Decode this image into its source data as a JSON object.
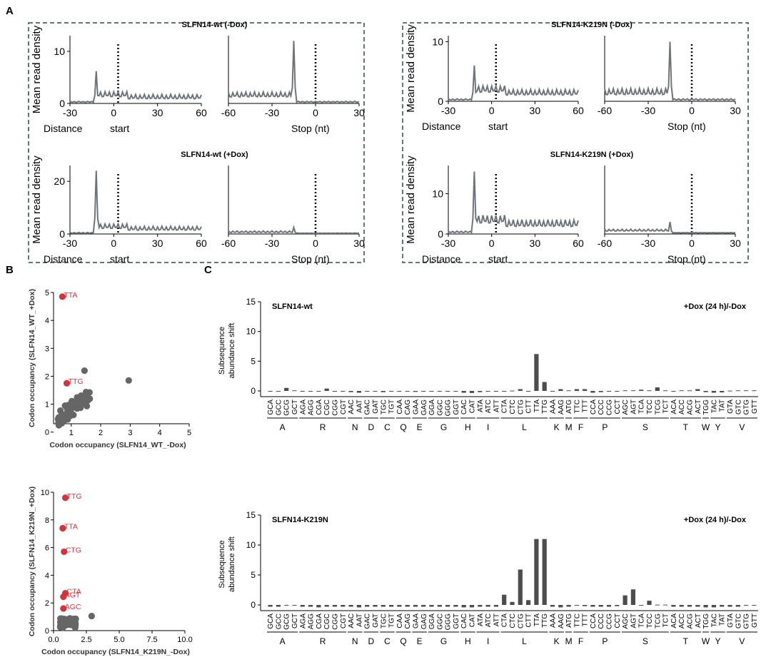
{
  "panels": {
    "A": "A",
    "B": "B",
    "C": "C"
  },
  "colors": {
    "line": "#6e757a",
    "bar": "#4d4d4d",
    "scatter": "#666666",
    "highlight": "#d6323a",
    "box": "#2f4f3f"
  },
  "panelA": {
    "ylabel": "Mean read density",
    "start_label_left": "Distance",
    "start_label_right": "start",
    "stop_label": "Stop (nt)",
    "groups": [
      {
        "rows": [
          {
            "title": "SLFN14-wt (-Dox)",
            "yticks": [
              0,
              10
            ],
            "ymax": 13,
            "start": {
              "peak": [
                -12,
                6.2
              ],
              "base": 1.2,
              "amp": 0.9,
              "tail": 0.3
            },
            "stop": {
              "peak": [
                -15,
                12
              ],
              "base": 1.6,
              "amp": 1.0,
              "tail": 0.3
            }
          },
          {
            "title": "SLFN14-wt (+Dox)",
            "yticks": [
              0,
              20
            ],
            "ymax": 26,
            "start": {
              "peak": [
                -12,
                24
              ],
              "base": 2.0,
              "amp": 1.6,
              "tail": 0.4
            },
            "stop": {
              "peak": [
                -15,
                2.5
              ],
              "base": 0.8,
              "amp": 0.6,
              "tail": 0.3
            }
          }
        ]
      },
      {
        "rows": [
          {
            "title": "SLFN14-K219N (-Dox)",
            "yticks": [
              0,
              10
            ],
            "ymax": 11,
            "start": {
              "peak": [
                -12,
                6.0
              ],
              "base": 1.4,
              "amp": 1.0,
              "tail": 0.3
            },
            "stop": {
              "peak": [
                -15,
                10
              ],
              "base": 1.5,
              "amp": 1.1,
              "tail": 0.3
            }
          },
          {
            "title": "SLFN14-K219N (+Dox)",
            "yticks": [
              0,
              10
            ],
            "ymax": 17,
            "start": {
              "peak": [
                -12,
                15.5
              ],
              "base": 2.5,
              "amp": 1.8,
              "tail": 0.5
            },
            "stop": {
              "peak": [
                -15,
                3.0
              ],
              "base": 0.9,
              "amp": 0.5,
              "tail": 0.3
            }
          }
        ]
      }
    ],
    "start_xticks": [
      -30,
      0,
      30,
      60
    ],
    "stop_xticks": [
      -60,
      -30,
      0,
      30
    ]
  },
  "panelB": {
    "plots": [
      {
        "xlabel": "Codon occupancy (SLFN14_WT_-Dox)",
        "ylabel": "Codon occupancy (SLFN14_WT_+Dox)",
        "ticks": [
          1,
          2,
          3,
          4,
          5
        ],
        "yticks": [
          0,
          1,
          2,
          3,
          4,
          5
        ],
        "max": 5,
        "highlights": [
          {
            "label": "TTA",
            "x": 0.7,
            "y": 4.85
          },
          {
            "label": "TTG",
            "x": 0.85,
            "y": 1.75
          }
        ]
      },
      {
        "xlabel": "Codon occupancy (SLFN14_K219N_-Dox)",
        "ylabel": "Codon occupancy (SLFN14_K219N_+Dox)",
        "ticks": [
          0.0,
          2.5,
          5.0,
          7.5,
          10.0
        ],
        "yticks": [
          0,
          2,
          4,
          6,
          8,
          10
        ],
        "max": 10,
        "highlights": [
          {
            "label": "TTG",
            "x": 0.9,
            "y": 9.6
          },
          {
            "label": "TTA",
            "x": 0.7,
            "y": 7.4
          },
          {
            "label": "CTG",
            "x": 0.8,
            "y": 5.7
          },
          {
            "label": "CTA",
            "x": 0.9,
            "y": 2.7
          },
          {
            "label": "AGT",
            "x": 0.75,
            "y": 2.45
          },
          {
            "label": "AGC",
            "x": 0.75,
            "y": 1.6
          }
        ]
      }
    ]
  },
  "panelC": {
    "ylabel_line1": "Subsequence",
    "ylabel_line2": "abundance shift",
    "yticks": [
      0,
      5,
      10,
      15
    ],
    "annotation": "+Dox (24 h)/-Dox",
    "codons": [
      "GCA",
      "GCC",
      "GCG",
      "GCT",
      "AGA",
      "AGG",
      "CGA",
      "CGC",
      "CGG",
      "CGT",
      "AAC",
      "AAT",
      "GAC",
      "GAT",
      "TGC",
      "TGT",
      "CAA",
      "CAG",
      "GAA",
      "GAG",
      "GGA",
      "GGC",
      "GGG",
      "GGT",
      "CAC",
      "CAT",
      "ATA",
      "ATC",
      "ATT",
      "CTA",
      "CTC",
      "CTG",
      "CTT",
      "TTA",
      "TTG",
      "AAA",
      "AAG",
      "ATG",
      "TTC",
      "TTT",
      "CCA",
      "CCC",
      "CCG",
      "CCT",
      "AGC",
      "AGT",
      "TCA",
      "TCC",
      "TCG",
      "TCT",
      "ACA",
      "ACC",
      "ACG",
      "ACT",
      "TGG",
      "TAC",
      "TAT",
      "GTA",
      "GTC",
      "GTG",
      "GTT"
    ],
    "amino_groups": [
      {
        "aa": "A",
        "start": 0,
        "end": 3
      },
      {
        "aa": "R",
        "start": 4,
        "end": 9
      },
      {
        "aa": "N",
        "start": 10,
        "end": 11
      },
      {
        "aa": "D",
        "start": 12,
        "end": 13
      },
      {
        "aa": "C",
        "start": 14,
        "end": 15
      },
      {
        "aa": "Q",
        "start": 16,
        "end": 17
      },
      {
        "aa": "E",
        "start": 18,
        "end": 19
      },
      {
        "aa": "G",
        "start": 20,
        "end": 23
      },
      {
        "aa": "H",
        "start": 24,
        "end": 25
      },
      {
        "aa": "I",
        "start": 26,
        "end": 28
      },
      {
        "aa": "L",
        "start": 29,
        "end": 34
      },
      {
        "aa": "K",
        "start": 35,
        "end": 36
      },
      {
        "aa": "M",
        "start": 37,
        "end": 37
      },
      {
        "aa": "F",
        "start": 38,
        "end": 39
      },
      {
        "aa": "P",
        "start": 40,
        "end": 43
      },
      {
        "aa": "S",
        "start": 44,
        "end": 49
      },
      {
        "aa": "T",
        "start": 50,
        "end": 53
      },
      {
        "aa": "W",
        "start": 54,
        "end": 54
      },
      {
        "aa": "Y",
        "start": 55,
        "end": 56
      },
      {
        "aa": "V",
        "start": 57,
        "end": 60
      }
    ],
    "charts": [
      {
        "title": "SLFN14-wt",
        "values": [
          -0.1,
          -0.1,
          0.5,
          0.1,
          -0.05,
          -0.05,
          -0.1,
          0.4,
          -0.05,
          -0.05,
          -0.2,
          -0.3,
          -0.05,
          -0.05,
          -0.2,
          -0.1,
          -0.1,
          -0.1,
          -0.15,
          -0.1,
          -0.05,
          -0.05,
          -0.05,
          -0.05,
          -0.3,
          -0.35,
          -0.2,
          -0.05,
          -0.05,
          -0.05,
          0.05,
          0.3,
          -0.05,
          6.2,
          1.5,
          -0.05,
          0.3,
          0.1,
          0.3,
          0.3,
          -0.3,
          -0.2,
          -0.05,
          -0.05,
          0.1,
          0.1,
          0.2,
          0.1,
          0.6,
          0.1,
          -0.05,
          0.1,
          0.1,
          0.3,
          -0.2,
          -0.3,
          -0.25,
          0.05,
          0.1,
          0.1,
          0.1
        ]
      },
      {
        "title": "SLFN14-K219N",
        "values": [
          -0.3,
          -0.3,
          -0.05,
          -0.1,
          -0.3,
          -0.3,
          -0.4,
          -0.3,
          -0.3,
          -0.3,
          -0.3,
          -0.4,
          -0.3,
          -0.3,
          -0.3,
          -0.3,
          -0.3,
          -0.3,
          -0.3,
          -0.3,
          -0.3,
          -0.3,
          -0.3,
          -0.3,
          -0.4,
          -0.4,
          -0.3,
          -0.3,
          -0.3,
          1.7,
          0.5,
          5.9,
          0.8,
          11,
          11,
          -0.3,
          -0.4,
          -0.3,
          -0.05,
          -0.2,
          -0.3,
          -0.3,
          -0.3,
          -0.2,
          1.6,
          2.6,
          -0.05,
          0.7,
          0.05,
          0.05,
          -0.3,
          -0.3,
          -0.3,
          -0.3,
          -0.4,
          -0.4,
          -0.3,
          -0.3,
          -0.3,
          -0.1,
          -0.05
        ]
      }
    ]
  }
}
